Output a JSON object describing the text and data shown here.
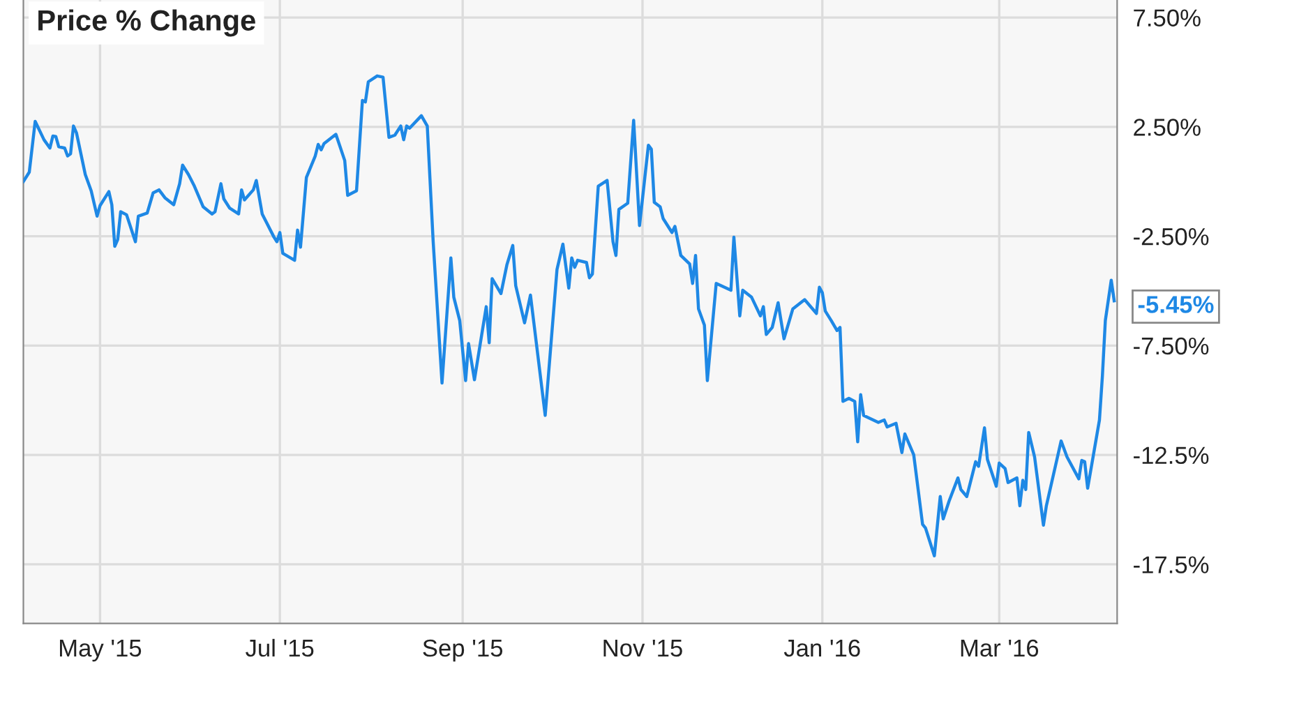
{
  "chart_data": {
    "type": "line",
    "title": "Price % Change",
    "x": [
      "2015-04-05",
      "2015-04-07",
      "2015-04-09",
      "2015-04-12",
      "2015-04-14",
      "2015-04-15",
      "2015-04-16",
      "2015-04-17",
      "2015-04-19",
      "2015-04-20",
      "2015-04-21",
      "2015-04-22",
      "2015-04-23",
      "2015-04-26",
      "2015-04-28",
      "2015-04-30",
      "2015-05-01",
      "2015-05-04",
      "2015-05-05",
      "2015-05-06",
      "2015-05-07",
      "2015-05-08",
      "2015-05-10",
      "2015-05-13",
      "2015-05-14",
      "2015-05-17",
      "2015-05-19",
      "2015-05-21",
      "2015-05-23",
      "2015-05-26",
      "2015-05-28",
      "2015-05-29",
      "2015-05-31",
      "2015-06-02",
      "2015-06-05",
      "2015-06-08",
      "2015-06-09",
      "2015-06-11",
      "2015-06-12",
      "2015-06-14",
      "2015-06-17",
      "2015-06-18",
      "2015-06-19",
      "2015-06-22",
      "2015-06-23",
      "2015-06-25",
      "2015-06-29",
      "2015-06-30",
      "2015-07-01",
      "2015-07-02",
      "2015-07-06",
      "2015-07-07",
      "2015-07-08",
      "2015-07-10",
      "2015-07-13",
      "2015-07-14",
      "2015-07-15",
      "2015-07-16",
      "2015-07-20",
      "2015-07-23",
      "2015-07-24",
      "2015-07-27",
      "2015-07-29",
      "2015-07-30",
      "2015-07-31",
      "2015-08-03",
      "2015-08-05",
      "2015-08-07",
      "2015-08-09",
      "2015-08-11",
      "2015-08-12",
      "2015-08-13",
      "2015-08-14",
      "2015-08-18",
      "2015-08-20",
      "2015-08-22",
      "2015-08-25",
      "2015-08-28",
      "2015-08-29",
      "2015-08-31",
      "2015-09-02",
      "2015-09-03",
      "2015-09-05",
      "2015-09-09",
      "2015-09-10",
      "2015-09-11",
      "2015-09-14",
      "2015-09-16",
      "2015-09-18",
      "2015-09-19",
      "2015-09-22",
      "2015-09-24",
      "2015-09-29",
      "2015-10-03",
      "2015-10-05",
      "2015-10-07",
      "2015-10-08",
      "2015-10-09",
      "2015-10-10",
      "2015-10-13",
      "2015-10-14",
      "2015-10-15",
      "2015-10-17",
      "2015-10-20",
      "2015-10-22",
      "2015-10-23",
      "2015-10-24",
      "2015-10-27",
      "2015-10-29",
      "2015-10-31",
      "2015-11-03",
      "2015-11-04",
      "2015-11-05",
      "2015-11-07",
      "2015-11-08",
      "2015-11-11",
      "2015-11-12",
      "2015-11-14",
      "2015-11-17",
      "2015-11-18",
      "2015-11-19",
      "2015-11-20",
      "2015-11-22",
      "2015-11-23",
      "2015-11-26",
      "2015-12-01",
      "2015-12-02",
      "2015-12-04",
      "2015-12-05",
      "2015-12-08",
      "2015-12-11",
      "2015-12-12",
      "2015-12-13",
      "2015-12-15",
      "2015-12-17",
      "2015-12-19",
      "2015-12-22",
      "2015-12-26",
      "2015-12-30",
      "2015-12-31",
      "2016-01-01",
      "2016-01-02",
      "2016-01-04",
      "2016-01-06",
      "2016-01-07",
      "2016-01-08",
      "2016-01-10",
      "2016-01-12",
      "2016-01-13",
      "2016-01-14",
      "2016-01-15",
      "2016-01-20",
      "2016-01-22",
      "2016-01-23",
      "2016-01-26",
      "2016-01-28",
      "2016-01-29",
      "2016-02-01",
      "2016-02-04",
      "2016-02-05",
      "2016-02-08",
      "2016-02-10",
      "2016-02-11",
      "2016-02-13",
      "2016-02-16",
      "2016-02-17",
      "2016-02-19",
      "2016-02-22",
      "2016-02-23",
      "2016-02-25",
      "2016-02-26",
      "2016-02-29",
      "2016-03-01",
      "2016-03-03",
      "2016-03-04",
      "2016-03-07",
      "2016-03-08",
      "2016-03-09",
      "2016-03-10",
      "2016-03-11",
      "2016-03-13",
      "2016-03-16",
      "2016-03-17",
      "2016-03-22",
      "2016-03-24",
      "2016-03-28",
      "2016-03-29",
      "2016-03-30",
      "2016-03-31",
      "2016-04-04",
      "2016-04-05",
      "2016-04-06",
      "2016-04-08",
      "2016-04-09"
    ],
    "series": [
      {
        "color": "#1e88e5",
        "values": [
          0.0,
          0.43,
          2.75,
          1.91,
          1.53,
          2.08,
          2.06,
          1.59,
          1.53,
          1.17,
          1.27,
          2.54,
          2.23,
          0.32,
          -0.42,
          -1.58,
          -1.1,
          -0.46,
          -1.06,
          -2.96,
          -2.65,
          -1.38,
          -1.52,
          -2.75,
          -1.58,
          -1.44,
          -0.52,
          -0.38,
          -0.74,
          -1.06,
          -0.1,
          0.75,
          0.32,
          -0.21,
          -1.16,
          -1.48,
          -1.38,
          -0.1,
          -0.8,
          -1.22,
          -1.48,
          -0.38,
          -0.84,
          -0.38,
          0.05,
          -1.48,
          -2.54,
          -2.75,
          -2.33,
          -3.28,
          -3.6,
          -2.22,
          -3.0,
          0.19,
          1.17,
          1.7,
          1.45,
          1.74,
          2.16,
          0.96,
          -0.63,
          -0.42,
          3.71,
          3.64,
          4.56,
          4.83,
          4.77,
          2.02,
          2.12,
          2.54,
          1.91,
          2.54,
          2.44,
          3.01,
          2.54,
          -2.75,
          -9.21,
          -3.49,
          -5.29,
          -6.35,
          -9.1,
          -7.41,
          -9.06,
          -5.72,
          -7.37,
          -4.44,
          -5.12,
          -3.81,
          -2.92,
          -4.76,
          -6.46,
          -5.19,
          -10.69,
          -4.02,
          -2.86,
          -4.87,
          -3.49,
          -3.92,
          -3.6,
          -3.7,
          -4.4,
          -4.23,
          -0.21,
          0.05,
          -2.75,
          -3.38,
          -1.27,
          -0.99,
          2.8,
          -2.01,
          1.66,
          1.48,
          -0.95,
          -1.16,
          -1.69,
          -2.33,
          -2.05,
          -3.38,
          -3.77,
          -4.66,
          -3.38,
          -5.82,
          -6.56,
          -9.1,
          -4.66,
          -4.97,
          -2.54,
          -6.14,
          -4.97,
          -5.29,
          -6.14,
          -5.72,
          -6.99,
          -6.67,
          -5.54,
          -7.19,
          -5.82,
          -5.4,
          -6.03,
          -4.83,
          -5.08,
          -5.92,
          -6.35,
          -6.81,
          -6.67,
          -10.05,
          -9.91,
          -10.05,
          -11.9,
          -9.74,
          -10.69,
          -11.01,
          -10.9,
          -11.22,
          -11.05,
          -12.39,
          -11.54,
          -12.49,
          -15.67,
          -15.84,
          -17.11,
          -14.4,
          -15.42,
          -14.61,
          -13.55,
          -14.08,
          -14.4,
          -12.81,
          -13.02,
          -11.26,
          -12.7,
          -13.93,
          -12.87,
          -13.12,
          -13.76,
          -13.55,
          -14.82,
          -13.66,
          -14.08,
          -11.47,
          -12.59,
          -15.71,
          -14.82,
          -11.86,
          -12.59,
          -13.59,
          -12.75,
          -12.81,
          -14.02,
          -10.9,
          -8.89,
          -6.35,
          -4.51,
          -5.45
        ]
      }
    ],
    "xlim": [
      "2015-04-05",
      "2016-04-10"
    ],
    "xticks": [
      {
        "value": "2015-05-01",
        "label": "May '15"
      },
      {
        "value": "2015-07-01",
        "label": "Jul '15"
      },
      {
        "value": "2015-09-01",
        "label": "Sep '15"
      },
      {
        "value": "2015-11-01",
        "label": "Nov '15"
      },
      {
        "value": "2016-01-01",
        "label": "Jan '16"
      },
      {
        "value": "2016-03-01",
        "label": "Mar '16"
      }
    ],
    "ylim": [
      -20.2,
      8.3
    ],
    "yticks": [
      {
        "value": 7.5,
        "label": "7.50%"
      },
      {
        "value": 2.5,
        "label": "2.50%"
      },
      {
        "value": -2.5,
        "label": "-2.50%"
      },
      {
        "value": -7.5,
        "label": "-7.50%"
      },
      {
        "value": -12.5,
        "label": "-12.5%"
      },
      {
        "value": -17.5,
        "label": "-17.5%"
      }
    ],
    "grid": true,
    "marker": "none",
    "line_style": "solid",
    "annotations": [
      {
        "text": "-5.45%",
        "x": "2016-04-09",
        "y": -5.45
      }
    ]
  }
}
